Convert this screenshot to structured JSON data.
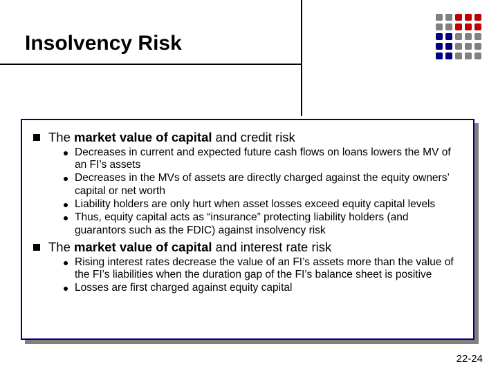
{
  "title": {
    "text": "Insolvency Risk",
    "fontsize": 30,
    "color": "#000000"
  },
  "decor": {
    "dot_colors": [
      "#808080",
      "#808080",
      "#c00000",
      "#c00000",
      "#c00000",
      "#808080",
      "#808080",
      "#c00000",
      "#c00000",
      "#c00000",
      "#000080",
      "#000080",
      "#808080",
      "#808080",
      "#808080",
      "#000080",
      "#000080",
      "#808080",
      "#808080",
      "#808080",
      "#000080",
      "#000080",
      "#808080",
      "#808080",
      "#808080"
    ]
  },
  "content_border_color": "#000080",
  "sections": [
    {
      "prefix": "The ",
      "bold": "market value of capital",
      "suffix": " and credit risk",
      "items": [
        "Decreases in current and expected future cash flows on loans lowers the MV of an FI’s assets",
        "Decreases in the MVs of assets are directly charged against the equity owners’ capital or net worth",
        "Liability holders are only hurt when asset losses exceed equity capital levels",
        "Thus, equity capital acts as “insurance” protecting liability holders (and guarantors such as the FDIC) against insolvency risk"
      ]
    },
    {
      "prefix": "The ",
      "bold": "market value of capital",
      "suffix": " and interest rate risk",
      "items": [
        "Rising interest rates decrease the value of an FI’s assets more than the value of the FI’s liabilities when the duration gap of the FI’s balance sheet is positive",
        "Losses are first charged against equity capital"
      ]
    }
  ],
  "page_number": "22-24"
}
